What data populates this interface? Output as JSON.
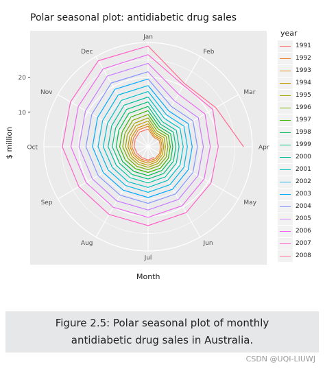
{
  "chart_data": {
    "type": "line",
    "coord": "polar",
    "title": "Polar seasonal plot: antidiabetic drug sales",
    "xlabel": "Month",
    "ylabel": "$ million",
    "x": [
      "Jan",
      "Feb",
      "Mar",
      "Apr",
      "May",
      "Jun",
      "Jul",
      "Aug",
      "Sep",
      "Oct",
      "Nov",
      "Dec"
    ],
    "radial_ticks": [
      "10",
      "20"
    ],
    "rlim": [
      0,
      30
    ],
    "legend_title": "year",
    "legend_position": "right",
    "grid": true,
    "series": [
      {
        "name": "1991",
        "color": "#F8766D",
        "values": [
          null,
          null,
          null,
          null,
          null,
          3.5,
          3.8,
          3.6,
          3.7,
          4.0,
          4.3,
          4.9
        ]
      },
      {
        "name": "1992",
        "color": "#EA8331",
        "values": [
          5.1,
          3.2,
          3.7,
          3.6,
          3.8,
          4.0,
          4.2,
          4.1,
          4.3,
          4.7,
          4.9,
          5.6
        ]
      },
      {
        "name": "1993",
        "color": "#D89000",
        "values": [
          5.9,
          3.6,
          4.2,
          4.0,
          4.2,
          4.5,
          4.7,
          4.6,
          4.8,
          5.2,
          5.5,
          6.2
        ]
      },
      {
        "name": "1994",
        "color": "#C09B00",
        "values": [
          6.6,
          4.1,
          4.7,
          4.5,
          4.7,
          5.0,
          5.3,
          5.2,
          5.4,
          5.8,
          6.1,
          7.0
        ]
      },
      {
        "name": "1995",
        "color": "#A3A500",
        "values": [
          7.4,
          4.6,
          5.3,
          5.0,
          5.3,
          5.6,
          5.9,
          5.8,
          6.0,
          6.5,
          6.9,
          7.8
        ]
      },
      {
        "name": "1996",
        "color": "#7CAE00",
        "values": [
          8.3,
          5.2,
          6.0,
          5.7,
          6.0,
          6.3,
          6.6,
          6.5,
          6.7,
          7.3,
          7.7,
          8.8
        ]
      },
      {
        "name": "1997",
        "color": "#39B600",
        "values": [
          9.3,
          5.9,
          6.7,
          6.4,
          6.7,
          7.1,
          7.4,
          7.3,
          7.6,
          8.2,
          8.6,
          9.9
        ]
      },
      {
        "name": "1998",
        "color": "#00BB4E",
        "values": [
          10.4,
          6.6,
          7.5,
          7.1,
          7.5,
          7.9,
          8.3,
          8.2,
          8.5,
          9.2,
          9.7,
          11.1
        ]
      },
      {
        "name": "1999",
        "color": "#00BF7D",
        "values": [
          11.6,
          7.4,
          8.4,
          8.0,
          8.4,
          8.9,
          9.3,
          9.2,
          9.5,
          10.3,
          10.8,
          12.4
        ]
      },
      {
        "name": "2000",
        "color": "#00C1A3",
        "values": [
          12.9,
          8.3,
          9.4,
          8.9,
          9.4,
          10.0,
          10.4,
          10.3,
          10.6,
          11.5,
          12.1,
          13.8
        ]
      },
      {
        "name": "2001",
        "color": "#00BFC4",
        "values": [
          14.3,
          9.4,
          10.6,
          10.1,
          10.6,
          11.2,
          11.7,
          11.6,
          11.9,
          12.9,
          13.5,
          15.4
        ]
      },
      {
        "name": "2002",
        "color": "#00B8E7",
        "values": [
          15.9,
          10.6,
          11.9,
          11.3,
          11.9,
          12.6,
          13.1,
          12.9,
          13.3,
          14.4,
          15.1,
          17.2
        ]
      },
      {
        "name": "2003",
        "color": "#00A9FF",
        "values": [
          17.6,
          11.9,
          13.3,
          12.7,
          13.3,
          14.1,
          14.6,
          14.4,
          14.9,
          16.0,
          16.8,
          19.1
        ]
      },
      {
        "name": "2004",
        "color": "#8494FF",
        "values": [
          19.5,
          13.4,
          14.9,
          14.2,
          14.9,
          15.7,
          16.3,
          16.1,
          16.6,
          17.9,
          18.7,
          21.2
        ]
      },
      {
        "name": "2005",
        "color": "#C77CFF",
        "values": [
          21.6,
          15.2,
          16.7,
          15.9,
          16.6,
          17.5,
          18.2,
          18.0,
          18.5,
          19.9,
          20.8,
          23.5
        ]
      },
      {
        "name": "2006",
        "color": "#ED68ED",
        "values": [
          24.0,
          17.5,
          18.9,
          17.9,
          18.6,
          19.6,
          20.3,
          20.1,
          20.6,
          22.2,
          23.2,
          25.9
        ]
      },
      {
        "name": "2007",
        "color": "#FF61C9",
        "values": [
          26.5,
          20.4,
          21.5,
          20.2,
          20.9,
          21.9,
          22.7,
          22.5,
          23.0,
          24.7,
          25.8,
          28.6
        ]
      },
      {
        "name": "2008",
        "color": "#FF6C91",
        "values": [
          29.0,
          21.0,
          22.5,
          27.5,
          null,
          null,
          null,
          null,
          null,
          null,
          null,
          null
        ]
      }
    ]
  },
  "caption": {
    "line1": "Figure 2.5: Polar seasonal plot of monthly",
    "line2": "antidiabetic drug sales in Australia."
  },
  "watermark": "CSDN @UQI-LIUWJ"
}
